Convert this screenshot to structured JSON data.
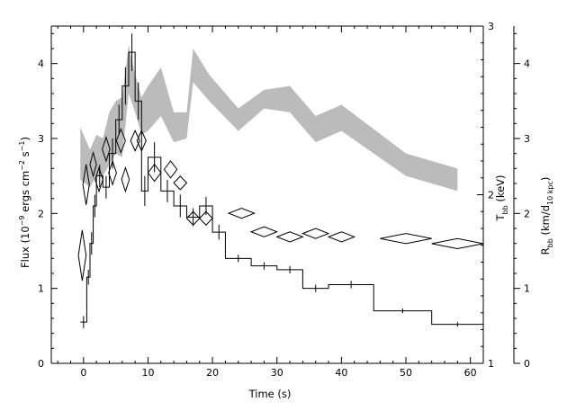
{
  "chart_data": {
    "type": "line",
    "xlabel": "Time (s)",
    "ylabel_left_main": "Flux (10",
    "ylabel_left_sup1": "−9",
    "ylabel_left_mid": " ergs cm",
    "ylabel_left_sup2": "−2",
    "ylabel_left_mid2": " s",
    "ylabel_left_sup3": "−1",
    "ylabel_left_end": ")",
    "ylabel_t_main": "T",
    "ylabel_t_sub": "bb",
    "ylabel_t_end": " (keV)",
    "ylabel_r_main": "R",
    "ylabel_r_sub": "bb",
    "ylabel_r_mid": " (km/d",
    "ylabel_r_sub2": "10 kpc",
    "ylabel_r_end": ")",
    "xlim": [
      -5,
      62
    ],
    "flux_ylim": [
      0,
      4.5
    ],
    "t_ylim": [
      1,
      3
    ],
    "r_ylim": [
      0,
      4.5
    ],
    "x_ticks": [
      "0",
      "10",
      "20",
      "30",
      "40",
      "50",
      "60"
    ],
    "x_tick_values": [
      0,
      10,
      20,
      30,
      40,
      50,
      60
    ],
    "flux_ticks": [
      "0",
      "1",
      "2",
      "3",
      "4"
    ],
    "flux_tick_values": [
      0,
      1,
      2,
      3,
      4
    ],
    "t_ticks": [
      "1",
      "2",
      "3"
    ],
    "t_tick_values": [
      1,
      2,
      3
    ],
    "r_ticks": [
      "0",
      "1",
      "2",
      "3",
      "4"
    ],
    "r_tick_values": [
      0,
      1,
      2,
      3,
      4
    ],
    "series": [
      {
        "kind": "histogram",
        "axis": "flux",
        "edges": [
          -0.5,
          0.5,
          1.0,
          1.5,
          2.0,
          3.0,
          4.0,
          5.0,
          6.0,
          7.0,
          8.0,
          9.0,
          10.0,
          12.0,
          14.0,
          16.0,
          18.0,
          20.0,
          22.0,
          26.0,
          30.0,
          34.0,
          38.0,
          45.0,
          54.0,
          62.0
        ],
        "values": [
          0.55,
          1.15,
          1.6,
          2.1,
          2.5,
          2.35,
          2.8,
          3.25,
          3.7,
          4.15,
          3.5,
          2.3,
          2.75,
          2.3,
          2.1,
          1.95,
          2.1,
          1.75,
          1.4,
          1.3,
          1.25,
          1.0,
          1.05,
          0.7,
          0.52
        ],
        "errors": [
          0.08,
          0.1,
          0.15,
          0.15,
          0.15,
          0.15,
          0.2,
          0.2,
          0.25,
          0.25,
          0.25,
          0.2,
          0.2,
          0.15,
          0.15,
          0.12,
          0.12,
          0.1,
          0.05,
          0.05,
          0.05,
          0.05,
          0.05,
          0.03,
          0.03
        ]
      },
      {
        "kind": "diamonds",
        "axis": "t",
        "x": [
          -0.2,
          0.4,
          1.5,
          2.4,
          3.5,
          4.5,
          5.8,
          6.5,
          8.0,
          9.0,
          11.0,
          13.5,
          15.0,
          17.0,
          19.0,
          24.5,
          28.0,
          32.0,
          36.0,
          40.0,
          50.0,
          58.0
        ],
        "y": [
          1.64,
          2.06,
          2.18,
          2.09,
          2.27,
          2.13,
          2.32,
          2.09,
          2.32,
          2.32,
          2.13,
          2.15,
          2.07,
          1.86,
          1.86,
          1.89,
          1.78,
          1.75,
          1.77,
          1.75,
          1.74,
          1.71
        ],
        "xerr": [
          0.6,
          0.5,
          0.5,
          0.6,
          0.6,
          0.6,
          0.7,
          0.6,
          0.7,
          0.7,
          1.0,
          1.0,
          1.0,
          1.0,
          1.0,
          2.0,
          2.0,
          2.0,
          2.0,
          2.0,
          4.0,
          4.0
        ],
        "yerr": [
          0.15,
          0.12,
          0.07,
          0.07,
          0.07,
          0.07,
          0.07,
          0.07,
          0.06,
          0.06,
          0.05,
          0.05,
          0.04,
          0.04,
          0.04,
          0.03,
          0.03,
          0.03,
          0.03,
          0.03,
          0.03,
          0.03
        ]
      },
      {
        "kind": "band",
        "axis": "r",
        "color": "#bbbbbb",
        "x": [
          -0.5,
          1.0,
          2.0,
          3.0,
          4.0,
          5.0,
          6.0,
          7.0,
          8.0,
          9.0,
          10.0,
          12.0,
          14.0,
          16.0,
          17.0,
          19.5,
          24.0,
          28.0,
          32.0,
          36.0,
          40.0,
          50.0,
          58.0
        ],
        "upper": [
          3.15,
          2.85,
          3.05,
          3.0,
          3.35,
          3.5,
          3.55,
          4.25,
          3.85,
          3.55,
          3.7,
          3.95,
          3.35,
          3.35,
          4.2,
          3.85,
          3.4,
          3.65,
          3.7,
          3.3,
          3.45,
          2.8,
          2.6
        ],
        "lower": [
          2.45,
          2.35,
          2.5,
          2.5,
          2.65,
          2.8,
          2.75,
          3.6,
          3.35,
          3.05,
          3.1,
          3.3,
          2.95,
          3.0,
          3.75,
          3.5,
          3.1,
          3.4,
          3.35,
          2.95,
          3.1,
          2.5,
          2.3
        ]
      }
    ]
  }
}
